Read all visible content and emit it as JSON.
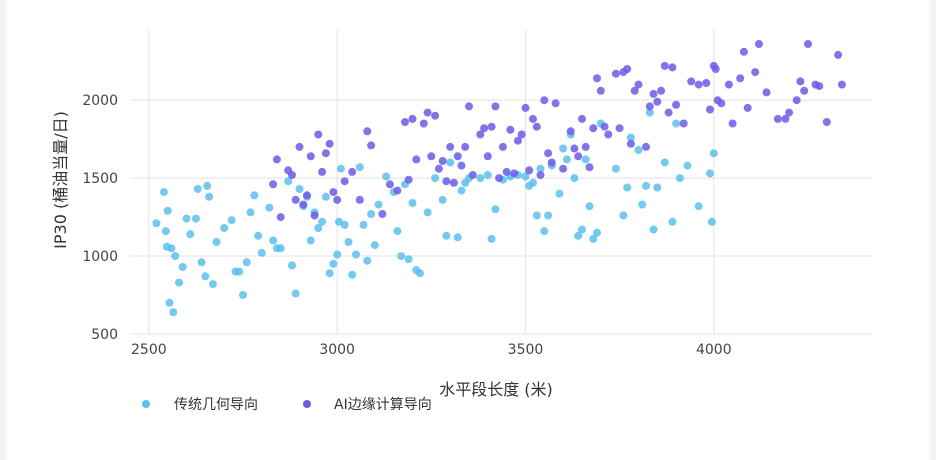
{
  "chart_data": {
    "type": "scatter",
    "title": "",
    "xlabel": "水平段长度 (米)",
    "ylabel": "IP30 (桶油当量/日)",
    "xlim": [
      2450,
      4420
    ],
    "ylim": [
      500,
      2450
    ],
    "xticks": [
      2500,
      3000,
      3500,
      4000
    ],
    "yticks": [
      500,
      1000,
      1500,
      2000
    ],
    "grid": true,
    "legend_position": "bottom-left",
    "series": [
      {
        "name": "传统几何导向",
        "color": "#5bc0eb",
        "points": [
          [
            2520,
            1210
          ],
          [
            2540,
            1410
          ],
          [
            2545,
            1160
          ],
          [
            2550,
            1290
          ],
          [
            2548,
            1060
          ],
          [
            2560,
            1050
          ],
          [
            2555,
            700
          ],
          [
            2565,
            640
          ],
          [
            2570,
            1000
          ],
          [
            2580,
            830
          ],
          [
            2590,
            930
          ],
          [
            2600,
            1240
          ],
          [
            2610,
            1140
          ],
          [
            2625,
            1240
          ],
          [
            2630,
            1430
          ],
          [
            2640,
            960
          ],
          [
            2650,
            870
          ],
          [
            2655,
            1450
          ],
          [
            2660,
            1380
          ],
          [
            2670,
            820
          ],
          [
            2680,
            1090
          ],
          [
            2700,
            1180
          ],
          [
            2720,
            1230
          ],
          [
            2730,
            900
          ],
          [
            2740,
            900
          ],
          [
            2750,
            750
          ],
          [
            2760,
            960
          ],
          [
            2770,
            1280
          ],
          [
            2780,
            1390
          ],
          [
            2790,
            1130
          ],
          [
            2800,
            1020
          ],
          [
            2820,
            1310
          ],
          [
            2830,
            1100
          ],
          [
            2840,
            1050
          ],
          [
            2850,
            1050
          ],
          [
            2870,
            1480
          ],
          [
            2880,
            940
          ],
          [
            2890,
            760
          ],
          [
            2900,
            1430
          ],
          [
            2910,
            1320
          ],
          [
            2920,
            1380
          ],
          [
            2930,
            1100
          ],
          [
            2940,
            1280
          ],
          [
            2950,
            1180
          ],
          [
            2960,
            1220
          ],
          [
            2970,
            1380
          ],
          [
            2980,
            890
          ],
          [
            2990,
            950
          ],
          [
            3000,
            1010
          ],
          [
            3005,
            1220
          ],
          [
            3010,
            1560
          ],
          [
            3020,
            1200
          ],
          [
            3030,
            1090
          ],
          [
            3040,
            880
          ],
          [
            3050,
            1010
          ],
          [
            3060,
            1570
          ],
          [
            3070,
            1200
          ],
          [
            3080,
            970
          ],
          [
            3090,
            1270
          ],
          [
            3100,
            1070
          ],
          [
            3110,
            1330
          ],
          [
            3130,
            1510
          ],
          [
            3150,
            1410
          ],
          [
            3160,
            1160
          ],
          [
            3170,
            1000
          ],
          [
            3180,
            1460
          ],
          [
            3190,
            980
          ],
          [
            3200,
            1340
          ],
          [
            3210,
            910
          ],
          [
            3220,
            890
          ],
          [
            3240,
            1280
          ],
          [
            3260,
            1500
          ],
          [
            3280,
            1360
          ],
          [
            3290,
            1130
          ],
          [
            3300,
            1600
          ],
          [
            3320,
            1120
          ],
          [
            3330,
            1420
          ],
          [
            3340,
            1470
          ],
          [
            3350,
            1500
          ],
          [
            3380,
            1500
          ],
          [
            3400,
            1520
          ],
          [
            3410,
            1110
          ],
          [
            3420,
            1300
          ],
          [
            3440,
            1490
          ],
          [
            3460,
            1510
          ],
          [
            3480,
            1520
          ],
          [
            3500,
            1510
          ],
          [
            3510,
            1450
          ],
          [
            3520,
            1470
          ],
          [
            3530,
            1260
          ],
          [
            3540,
            1560
          ],
          [
            3550,
            1160
          ],
          [
            3560,
            1260
          ],
          [
            3570,
            1580
          ],
          [
            3590,
            1400
          ],
          [
            3600,
            1690
          ],
          [
            3610,
            1620
          ],
          [
            3620,
            1780
          ],
          [
            3630,
            1500
          ],
          [
            3640,
            1130
          ],
          [
            3650,
            1170
          ],
          [
            3660,
            1620
          ],
          [
            3670,
            1320
          ],
          [
            3680,
            1110
          ],
          [
            3690,
            1150
          ],
          [
            3700,
            1850
          ],
          [
            3740,
            1560
          ],
          [
            3760,
            1260
          ],
          [
            3770,
            1440
          ],
          [
            3780,
            1760
          ],
          [
            3800,
            1680
          ],
          [
            3810,
            1330
          ],
          [
            3820,
            1450
          ],
          [
            3830,
            1920
          ],
          [
            3840,
            1170
          ],
          [
            3850,
            1440
          ],
          [
            3870,
            1600
          ],
          [
            3890,
            1220
          ],
          [
            3900,
            1850
          ],
          [
            3910,
            1500
          ],
          [
            3930,
            1580
          ],
          [
            3960,
            1320
          ],
          [
            3990,
            1530
          ],
          [
            3995,
            1220
          ],
          [
            4000,
            1660
          ]
        ]
      },
      {
        "name": "AI边缘计算导向",
        "color": "#6b5ce7",
        "points": [
          [
            2830,
            1460
          ],
          [
            2840,
            1620
          ],
          [
            2850,
            1250
          ],
          [
            2870,
            1550
          ],
          [
            2880,
            1520
          ],
          [
            2890,
            1360
          ],
          [
            2900,
            1700
          ],
          [
            2910,
            1330
          ],
          [
            2920,
            1390
          ],
          [
            2930,
            1640
          ],
          [
            2940,
            1260
          ],
          [
            2950,
            1780
          ],
          [
            2960,
            1540
          ],
          [
            2970,
            1660
          ],
          [
            2980,
            1720
          ],
          [
            2990,
            1410
          ],
          [
            3000,
            1360
          ],
          [
            3020,
            1480
          ],
          [
            3040,
            1540
          ],
          [
            3060,
            1360
          ],
          [
            3080,
            1800
          ],
          [
            3090,
            1710
          ],
          [
            3120,
            1270
          ],
          [
            3140,
            1460
          ],
          [
            3160,
            1420
          ],
          [
            3180,
            1860
          ],
          [
            3190,
            1490
          ],
          [
            3200,
            1880
          ],
          [
            3210,
            1620
          ],
          [
            3230,
            1850
          ],
          [
            3240,
            1920
          ],
          [
            3250,
            1640
          ],
          [
            3260,
            1900
          ],
          [
            3270,
            1560
          ],
          [
            3280,
            1610
          ],
          [
            3290,
            1480
          ],
          [
            3300,
            1700
          ],
          [
            3310,
            1470
          ],
          [
            3320,
            1640
          ],
          [
            3330,
            1580
          ],
          [
            3340,
            1700
          ],
          [
            3350,
            1960
          ],
          [
            3360,
            1520
          ],
          [
            3380,
            1780
          ],
          [
            3390,
            1820
          ],
          [
            3400,
            1640
          ],
          [
            3410,
            1830
          ],
          [
            3420,
            1960
          ],
          [
            3430,
            1500
          ],
          [
            3440,
            1700
          ],
          [
            3450,
            1540
          ],
          [
            3460,
            1810
          ],
          [
            3470,
            1530
          ],
          [
            3480,
            1740
          ],
          [
            3490,
            1780
          ],
          [
            3500,
            1950
          ],
          [
            3510,
            1550
          ],
          [
            3520,
            1880
          ],
          [
            3530,
            1830
          ],
          [
            3540,
            1520
          ],
          [
            3550,
            2000
          ],
          [
            3560,
            1660
          ],
          [
            3570,
            1600
          ],
          [
            3580,
            1980
          ],
          [
            3600,
            1560
          ],
          [
            3620,
            1800
          ],
          [
            3630,
            1690
          ],
          [
            3640,
            1640
          ],
          [
            3650,
            1880
          ],
          [
            3660,
            1700
          ],
          [
            3670,
            1570
          ],
          [
            3680,
            1820
          ],
          [
            3690,
            2140
          ],
          [
            3700,
            2060
          ],
          [
            3710,
            1830
          ],
          [
            3720,
            1780
          ],
          [
            3740,
            2170
          ],
          [
            3750,
            1820
          ],
          [
            3760,
            2180
          ],
          [
            3770,
            2200
          ],
          [
            3780,
            1720
          ],
          [
            3790,
            2060
          ],
          [
            3800,
            2100
          ],
          [
            3820,
            1700
          ],
          [
            3830,
            1960
          ],
          [
            3840,
            2040
          ],
          [
            3850,
            1990
          ],
          [
            3860,
            2060
          ],
          [
            3870,
            2220
          ],
          [
            3880,
            1920
          ],
          [
            3890,
            2210
          ],
          [
            3900,
            1970
          ],
          [
            3920,
            1850
          ],
          [
            3940,
            2120
          ],
          [
            3960,
            2100
          ],
          [
            3980,
            2110
          ],
          [
            3990,
            1940
          ],
          [
            4000,
            2220
          ],
          [
            4005,
            2200
          ],
          [
            4010,
            2000
          ],
          [
            4020,
            1980
          ],
          [
            4040,
            2100
          ],
          [
            4050,
            1850
          ],
          [
            4070,
            2140
          ],
          [
            4080,
            2310
          ],
          [
            4090,
            1950
          ],
          [
            4110,
            2180
          ],
          [
            4120,
            2360
          ],
          [
            4140,
            2050
          ],
          [
            4170,
            1880
          ],
          [
            4190,
            1880
          ],
          [
            4200,
            1920
          ],
          [
            4220,
            2000
          ],
          [
            4230,
            2120
          ],
          [
            4240,
            2060
          ],
          [
            4250,
            2360
          ],
          [
            4270,
            2100
          ],
          [
            4280,
            2090
          ],
          [
            4300,
            1860
          ],
          [
            4330,
            2290
          ],
          [
            4340,
            2100
          ]
        ]
      }
    ]
  }
}
